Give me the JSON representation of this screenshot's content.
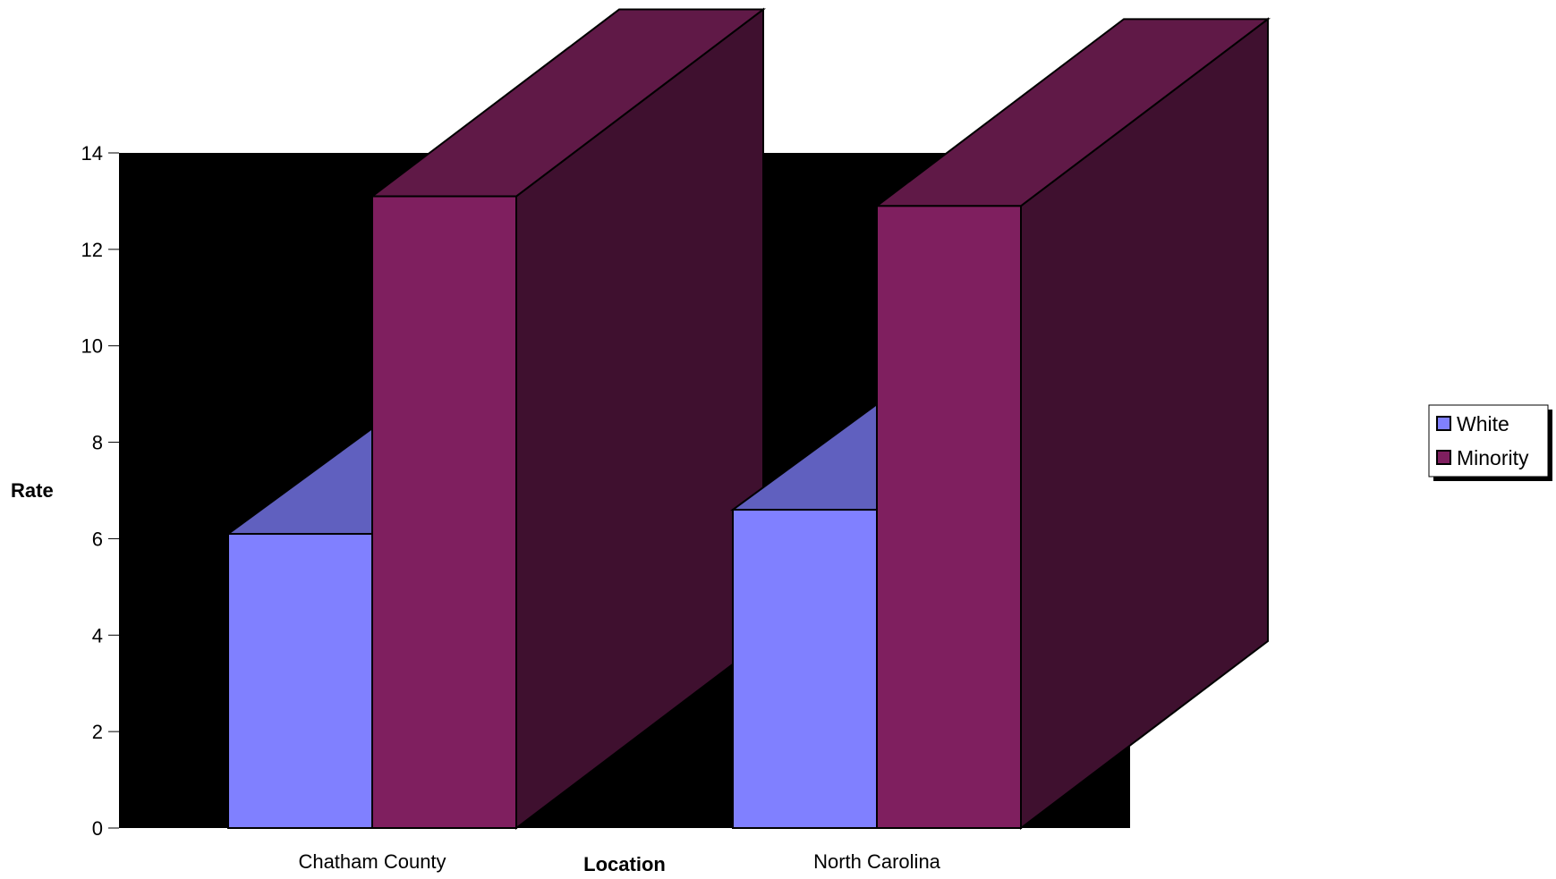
{
  "chart_data": {
    "type": "bar",
    "title": "",
    "xlabel": "Location",
    "ylabel": "Rate",
    "categories": [
      "Chatham County",
      "North Carolina"
    ],
    "series": [
      {
        "name": "White",
        "values": [
          6.1,
          6.6
        ],
        "color": "#8080ff"
      },
      {
        "name": "Minority",
        "values": [
          13.1,
          12.9
        ],
        "color": "#7f1f5f"
      }
    ],
    "ylim": [
      0,
      14
    ],
    "yticks": [
      0,
      2,
      4,
      6,
      8,
      10,
      12,
      14
    ],
    "grid": false,
    "legend_position": "right",
    "style": "3d",
    "colors": {
      "plot_background": "#000000",
      "white_top": "#6060bf",
      "minority_top": "#601947",
      "minority_side": "#3f102f"
    }
  }
}
